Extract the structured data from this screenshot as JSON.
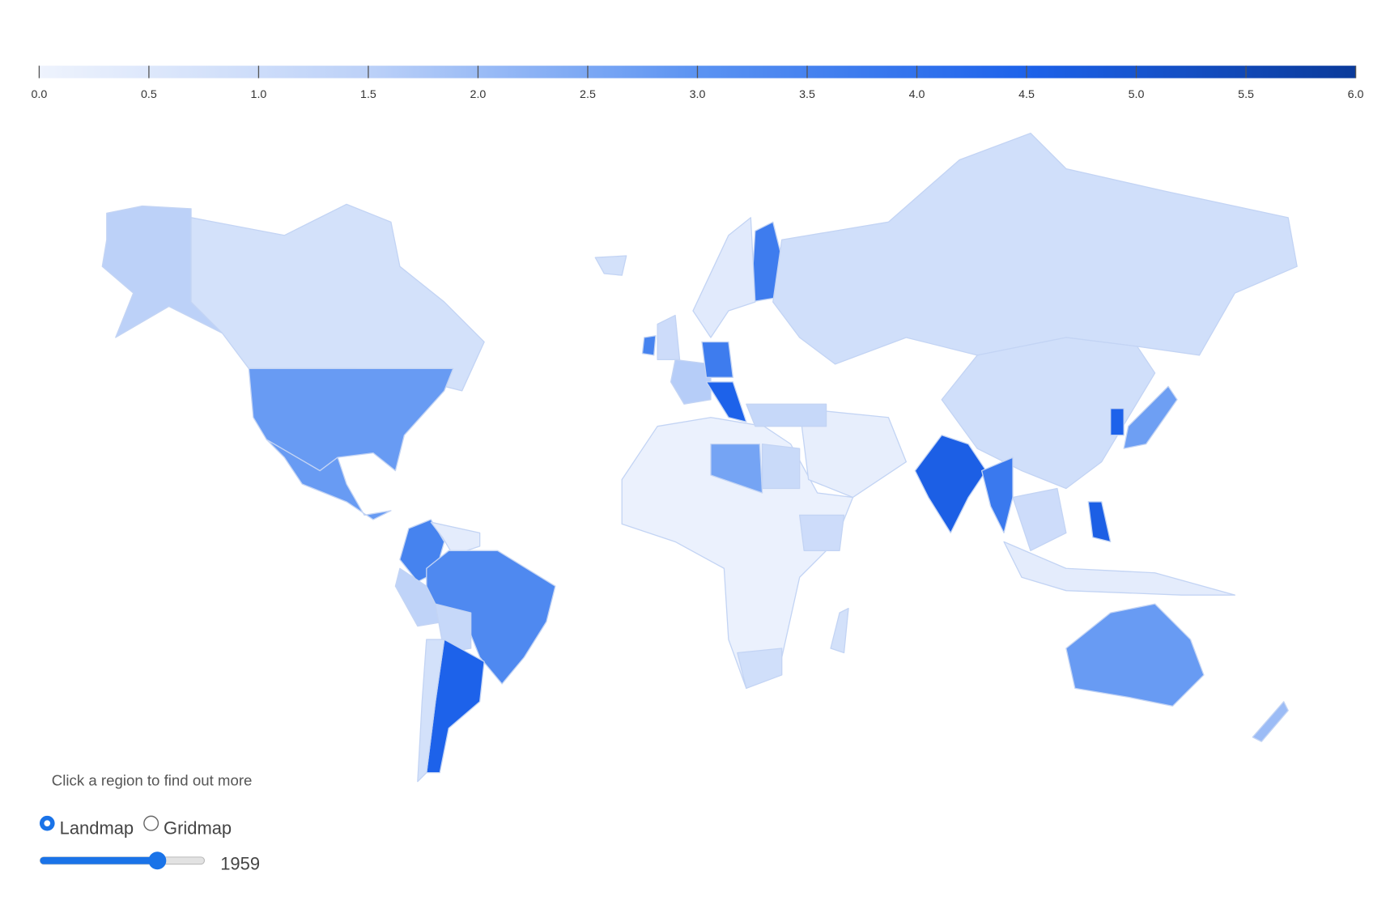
{
  "colorbar": {
    "lim": [
      0,
      6
    ],
    "ticks": [
      {
        "value": 0,
        "label": "0.0"
      },
      0.5,
      {
        "value": 1,
        "label": "1.0"
      },
      1.5,
      {
        "value": 2,
        "label": "2.0"
      },
      2.5,
      {
        "value": 3,
        "label": "3.0"
      },
      3.5,
      {
        "value": 4,
        "label": "4.0"
      },
      4.5,
      {
        "value": 5,
        "label": "5.0"
      },
      5.5,
      {
        "value": 6,
        "label": "6.0"
      }
    ],
    "colors": [
      "#eef3fd",
      "#bcd1f8",
      "#5b93f2",
      "#1d62ea",
      "#0a3a9a"
    ]
  },
  "region_values": [
    1.5,
    0.8,
    2.8,
    2.8,
    3.5,
    0.3,
    3.3,
    1.4,
    1.2,
    4.5,
    0.8,
    1.6,
    3.7,
    4.5,
    3.7,
    0.4,
    0.9,
    0.9,
    4.6,
    3.8,
    1.0,
    0.3,
    4.6,
    4.5,
    2.7,
    2.8,
    2.0,
    0.1,
    2.6,
    1.1,
    1.0,
    0.9,
    0.2,
    0.8,
    0.8,
    1.0,
    3.5,
    1.2
  ],
  "controls": {
    "hint": "Click a region to find out more",
    "options": [
      "Landmap",
      "Gridmap"
    ],
    "year": 1959
  }
}
